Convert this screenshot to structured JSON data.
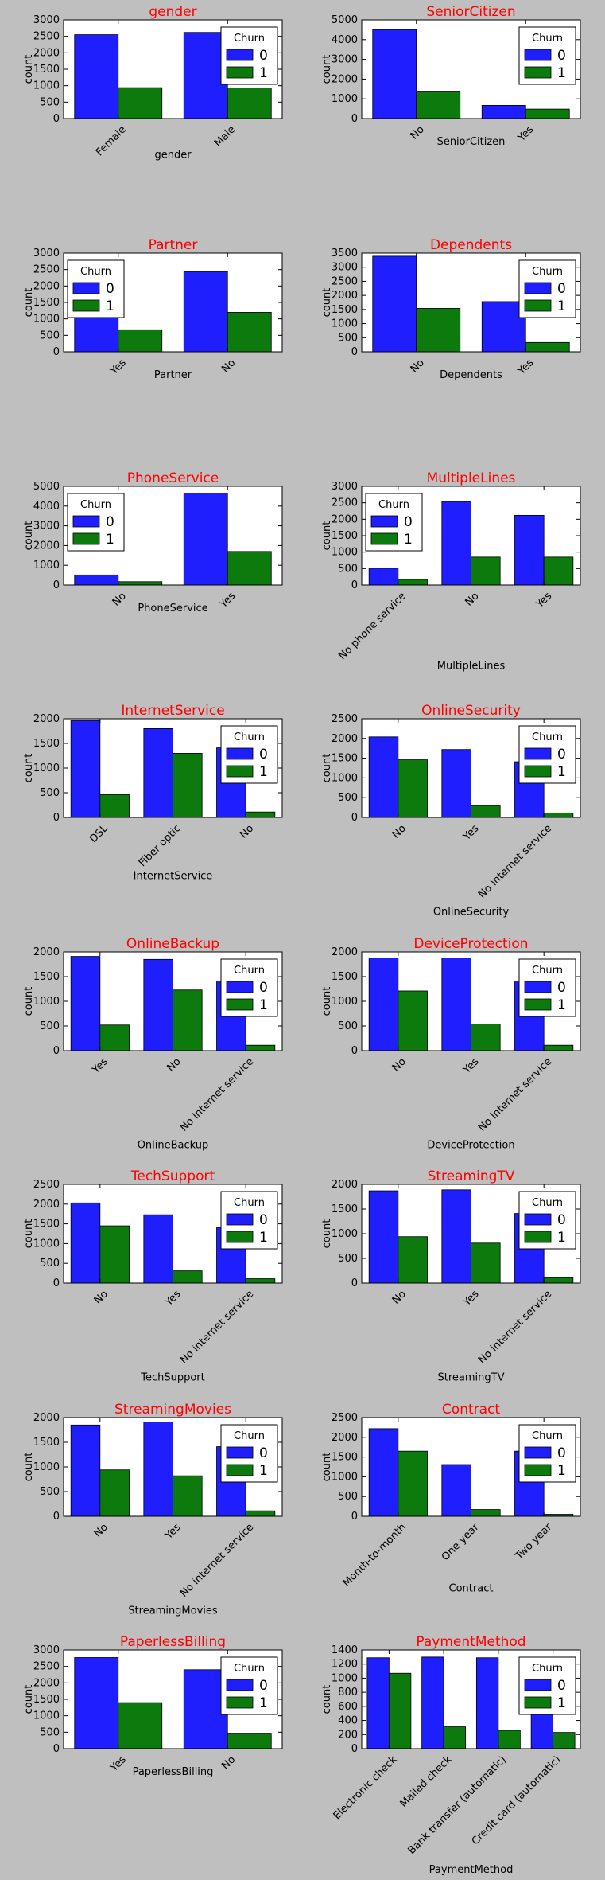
{
  "colors": {
    "bar0": "#1e1eff",
    "bar1": "#0d7a0d",
    "title": "#ff0000",
    "figure_bg": "#bfbfbf",
    "axes_bg": "#ffffff"
  },
  "legend": {
    "title": "Churn",
    "labels": [
      "0",
      "1"
    ]
  },
  "chart_data": [
    {
      "type": "bar",
      "title": "gender",
      "xlabel": "gender",
      "ylabel": "count",
      "categories": [
        "Female",
        "Male"
      ],
      "ylim": [
        0,
        3000
      ],
      "yticks": [
        0,
        500,
        1000,
        1500,
        2000,
        2500,
        3000
      ],
      "legend_position": "top-right",
      "series": [
        {
          "name": "0",
          "values": [
            2550,
            2620
          ]
        },
        {
          "name": "1",
          "values": [
            940,
            930
          ]
        }
      ]
    },
    {
      "type": "bar",
      "title": "SeniorCitizen",
      "xlabel": "SeniorCitizen",
      "ylabel": "count",
      "categories": [
        "No",
        "Yes"
      ],
      "ylim": [
        0,
        5000
      ],
      "yticks": [
        0,
        1000,
        2000,
        3000,
        4000,
        5000
      ],
      "legend_position": "top-right",
      "series": [
        {
          "name": "0",
          "values": [
            4510,
            670
          ]
        },
        {
          "name": "1",
          "values": [
            1390,
            480
          ]
        }
      ]
    },
    {
      "type": "bar",
      "title": "Partner",
      "xlabel": "Partner",
      "ylabel": "count",
      "categories": [
        "Yes",
        "No"
      ],
      "ylim": [
        0,
        3000
      ],
      "yticks": [
        0,
        500,
        1000,
        1500,
        2000,
        2500,
        3000
      ],
      "legend_position": "top-left",
      "series": [
        {
          "name": "0",
          "values": [
            2730,
            2440
          ]
        },
        {
          "name": "1",
          "values": [
            670,
            1200
          ]
        }
      ]
    },
    {
      "type": "bar",
      "title": "Dependents",
      "xlabel": "Dependents",
      "ylabel": "count",
      "categories": [
        "No",
        "Yes"
      ],
      "ylim": [
        0,
        3500
      ],
      "yticks": [
        0,
        500,
        1000,
        1500,
        2000,
        2500,
        3000,
        3500
      ],
      "legend_position": "top-right",
      "series": [
        {
          "name": "0",
          "values": [
            3390,
            1780
          ]
        },
        {
          "name": "1",
          "values": [
            1540,
            330
          ]
        }
      ]
    },
    {
      "type": "bar",
      "title": "PhoneService",
      "xlabel": "PhoneService",
      "ylabel": "count",
      "categories": [
        "No",
        "Yes"
      ],
      "ylim": [
        0,
        5000
      ],
      "yticks": [
        0,
        1000,
        2000,
        3000,
        4000,
        5000
      ],
      "legend_position": "top-left",
      "series": [
        {
          "name": "0",
          "values": [
            510,
            4660
          ]
        },
        {
          "name": "1",
          "values": [
            170,
            1700
          ]
        }
      ]
    },
    {
      "type": "bar",
      "title": "MultipleLines",
      "xlabel": "MultipleLines",
      "ylabel": "count",
      "categories": [
        "No phone service",
        "No",
        "Yes"
      ],
      "ylim": [
        0,
        3000
      ],
      "yticks": [
        0,
        500,
        1000,
        1500,
        2000,
        2500,
        3000
      ],
      "legend_position": "top-left",
      "series": [
        {
          "name": "0",
          "values": [
            510,
            2540,
            2120
          ]
        },
        {
          "name": "1",
          "values": [
            170,
            850,
            850
          ]
        }
      ]
    },
    {
      "type": "bar",
      "title": "InternetService",
      "xlabel": "InternetService",
      "ylabel": "count",
      "categories": [
        "DSL",
        "Fiber optic",
        "No"
      ],
      "ylim": [
        0,
        2000
      ],
      "yticks": [
        0,
        500,
        1000,
        1500,
        2000
      ],
      "legend_position": "top-right",
      "series": [
        {
          "name": "0",
          "values": [
            1960,
            1800,
            1410
          ]
        },
        {
          "name": "1",
          "values": [
            460,
            1300,
            110
          ]
        }
      ]
    },
    {
      "type": "bar",
      "title": "OnlineSecurity",
      "xlabel": "OnlineSecurity",
      "ylabel": "count",
      "categories": [
        "No",
        "Yes",
        "No internet service"
      ],
      "ylim": [
        0,
        2500
      ],
      "yticks": [
        0,
        500,
        1000,
        1500,
        2000,
        2500
      ],
      "legend_position": "top-right",
      "series": [
        {
          "name": "0",
          "values": [
            2040,
            1720,
            1410
          ]
        },
        {
          "name": "1",
          "values": [
            1460,
            300,
            110
          ]
        }
      ]
    },
    {
      "type": "bar",
      "title": "OnlineBackup",
      "xlabel": "OnlineBackup",
      "ylabel": "count",
      "categories": [
        "Yes",
        "No",
        "No internet service"
      ],
      "ylim": [
        0,
        2000
      ],
      "yticks": [
        0,
        500,
        1000,
        1500,
        2000
      ],
      "legend_position": "top-right",
      "series": [
        {
          "name": "0",
          "values": [
            1910,
            1850,
            1410
          ]
        },
        {
          "name": "1",
          "values": [
            520,
            1230,
            110
          ]
        }
      ]
    },
    {
      "type": "bar",
      "title": "DeviceProtection",
      "xlabel": "DeviceProtection",
      "ylabel": "count",
      "categories": [
        "No",
        "Yes",
        "No internet service"
      ],
      "ylim": [
        0,
        2000
      ],
      "yticks": [
        0,
        500,
        1000,
        1500,
        2000
      ],
      "legend_position": "top-right",
      "series": [
        {
          "name": "0",
          "values": [
            1880,
            1880,
            1410
          ]
        },
        {
          "name": "1",
          "values": [
            1210,
            540,
            110
          ]
        }
      ]
    },
    {
      "type": "bar",
      "title": "TechSupport",
      "xlabel": "TechSupport",
      "ylabel": "count",
      "categories": [
        "No",
        "Yes",
        "No internet service"
      ],
      "ylim": [
        0,
        2500
      ],
      "yticks": [
        0,
        500,
        1000,
        1500,
        2000,
        2500
      ],
      "legend_position": "top-right",
      "series": [
        {
          "name": "0",
          "values": [
            2030,
            1730,
            1410
          ]
        },
        {
          "name": "1",
          "values": [
            1450,
            310,
            110
          ]
        }
      ]
    },
    {
      "type": "bar",
      "title": "StreamingTV",
      "xlabel": "StreamingTV",
      "ylabel": "count",
      "categories": [
        "No",
        "Yes",
        "No internet service"
      ],
      "ylim": [
        0,
        2000
      ],
      "yticks": [
        0,
        500,
        1000,
        1500,
        2000
      ],
      "legend_position": "top-right",
      "series": [
        {
          "name": "0",
          "values": [
            1870,
            1890,
            1410
          ]
        },
        {
          "name": "1",
          "values": [
            940,
            810,
            110
          ]
        }
      ]
    },
    {
      "type": "bar",
      "title": "StreamingMovies",
      "xlabel": "StreamingMovies",
      "ylabel": "count",
      "categories": [
        "No",
        "Yes",
        "No internet service"
      ],
      "ylim": [
        0,
        2000
      ],
      "yticks": [
        0,
        500,
        1000,
        1500,
        2000
      ],
      "legend_position": "top-right",
      "series": [
        {
          "name": "0",
          "values": [
            1850,
            1910,
            1410
          ]
        },
        {
          "name": "1",
          "values": [
            940,
            820,
            110
          ]
        }
      ]
    },
    {
      "type": "bar",
      "title": "Contract",
      "xlabel": "Contract",
      "ylabel": "count",
      "categories": [
        "Month-to-month",
        "One year",
        "Two year"
      ],
      "ylim": [
        0,
        2500
      ],
      "yticks": [
        0,
        500,
        1000,
        1500,
        2000,
        2500
      ],
      "legend_position": "top-right",
      "series": [
        {
          "name": "0",
          "values": [
            2220,
            1310,
            1650
          ]
        },
        {
          "name": "1",
          "values": [
            1650,
            170,
            50
          ]
        }
      ]
    },
    {
      "type": "bar",
      "title": "PaperlessBilling",
      "xlabel": "PaperlessBilling",
      "ylabel": "count",
      "categories": [
        "Yes",
        "No"
      ],
      "ylim": [
        0,
        3000
      ],
      "yticks": [
        0,
        500,
        1000,
        1500,
        2000,
        2500,
        3000
      ],
      "legend_position": "top-right",
      "series": [
        {
          "name": "0",
          "values": [
            2770,
            2400
          ]
        },
        {
          "name": "1",
          "values": [
            1400,
            470
          ]
        }
      ]
    },
    {
      "type": "bar",
      "title": "PaymentMethod",
      "xlabel": "PaymentMethod",
      "ylabel": "count",
      "categories": [
        "Electronic check",
        "Mailed check",
        "Bank transfer (automatic)",
        "Credit card (automatic)"
      ],
      "ylim": [
        0,
        1400
      ],
      "yticks": [
        0,
        200,
        400,
        600,
        800,
        1000,
        1200,
        1400
      ],
      "legend_position": "top-right",
      "series": [
        {
          "name": "0",
          "values": [
            1290,
            1300,
            1290,
            1290
          ]
        },
        {
          "name": "1",
          "values": [
            1070,
            310,
            260,
            230
          ]
        }
      ]
    }
  ]
}
